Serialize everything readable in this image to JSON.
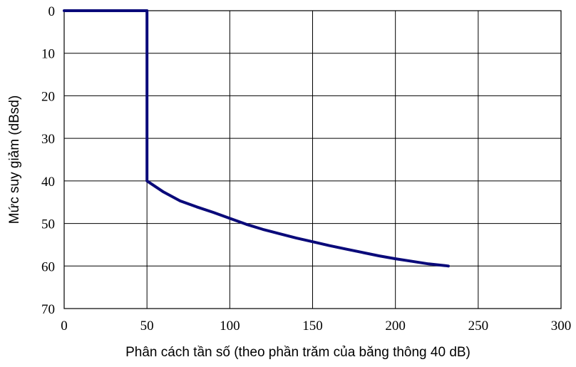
{
  "chart_data": {
    "type": "line",
    "xlabel": "Phân cách tần số (theo phần trăm của băng thông 40 dB)",
    "ylabel": "Mức suy giảm (dBsd)",
    "xlim": [
      0,
      300
    ],
    "ylim": [
      0,
      70
    ],
    "y_inverted": true,
    "grid": true,
    "x_ticks": [
      "0",
      "50",
      "100",
      "150",
      "200",
      "250",
      "300"
    ],
    "y_ticks": [
      "0",
      "10",
      "20",
      "30",
      "40",
      "50",
      "60",
      "70"
    ],
    "series": [
      {
        "color": "#0a0a7a",
        "x": [
          0,
          50,
          50,
          60,
          70,
          80,
          90,
          100,
          110,
          120,
          130,
          140,
          150,
          160,
          170,
          180,
          190,
          200,
          210,
          220,
          230,
          232
        ],
        "y": [
          0,
          0,
          40,
          42.6,
          44.7,
          46.1,
          47.4,
          48.8,
          50.2,
          51.4,
          52.4,
          53.4,
          54.3,
          55.2,
          56.0,
          56.8,
          57.6,
          58.3,
          58.9,
          59.5,
          59.9,
          60
        ]
      }
    ]
  }
}
